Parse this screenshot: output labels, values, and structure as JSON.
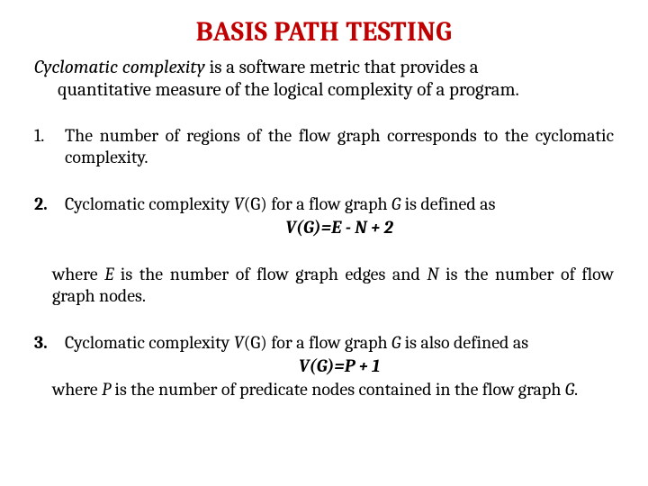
{
  "title": {
    "text": "BASIS PATH TESTING",
    "color": "#c00000",
    "fontsize": 30
  },
  "intro": {
    "term": "Cyclomatic complexity",
    "rest_line1": " is a software metric that provides a",
    "rest_line2": "quantitative measure of the logical complexity of a program."
  },
  "items": [
    {
      "text": "The number of regions of the flow graph corresponds to the cyclomatic complexity.",
      "bold_marker": false
    },
    {
      "lead": "Cyclomatic complexity ",
      "vg": "V",
      "paren_g": "(G)",
      "mid": " for a flow graph ",
      "g": "G",
      "trail": " is defined as",
      "formula": "V(G)=E - N + 2",
      "bold_marker": true
    },
    {
      "lead": "Cyclomatic complexity ",
      "vg": "V",
      "paren_g": "(G)",
      "mid": " for a flow graph ",
      "g": "G",
      "trail": " is also defined as",
      "formula": "V(G)=P + 1",
      "bold_marker": true
    }
  ],
  "where1": {
    "pre": "where ",
    "e": "E",
    "mid1": " is the number of flow graph edges and ",
    "n": "N",
    "mid2": " is the number of flow graph nodes."
  },
  "where2": {
    "pre": "where ",
    "p": "P",
    "rest": " is the number of predicate nodes contained in the flow graph ",
    "g": "G",
    "end": "."
  },
  "colors": {
    "title": "#c00000",
    "text": "#000000",
    "background": "#ffffff"
  }
}
